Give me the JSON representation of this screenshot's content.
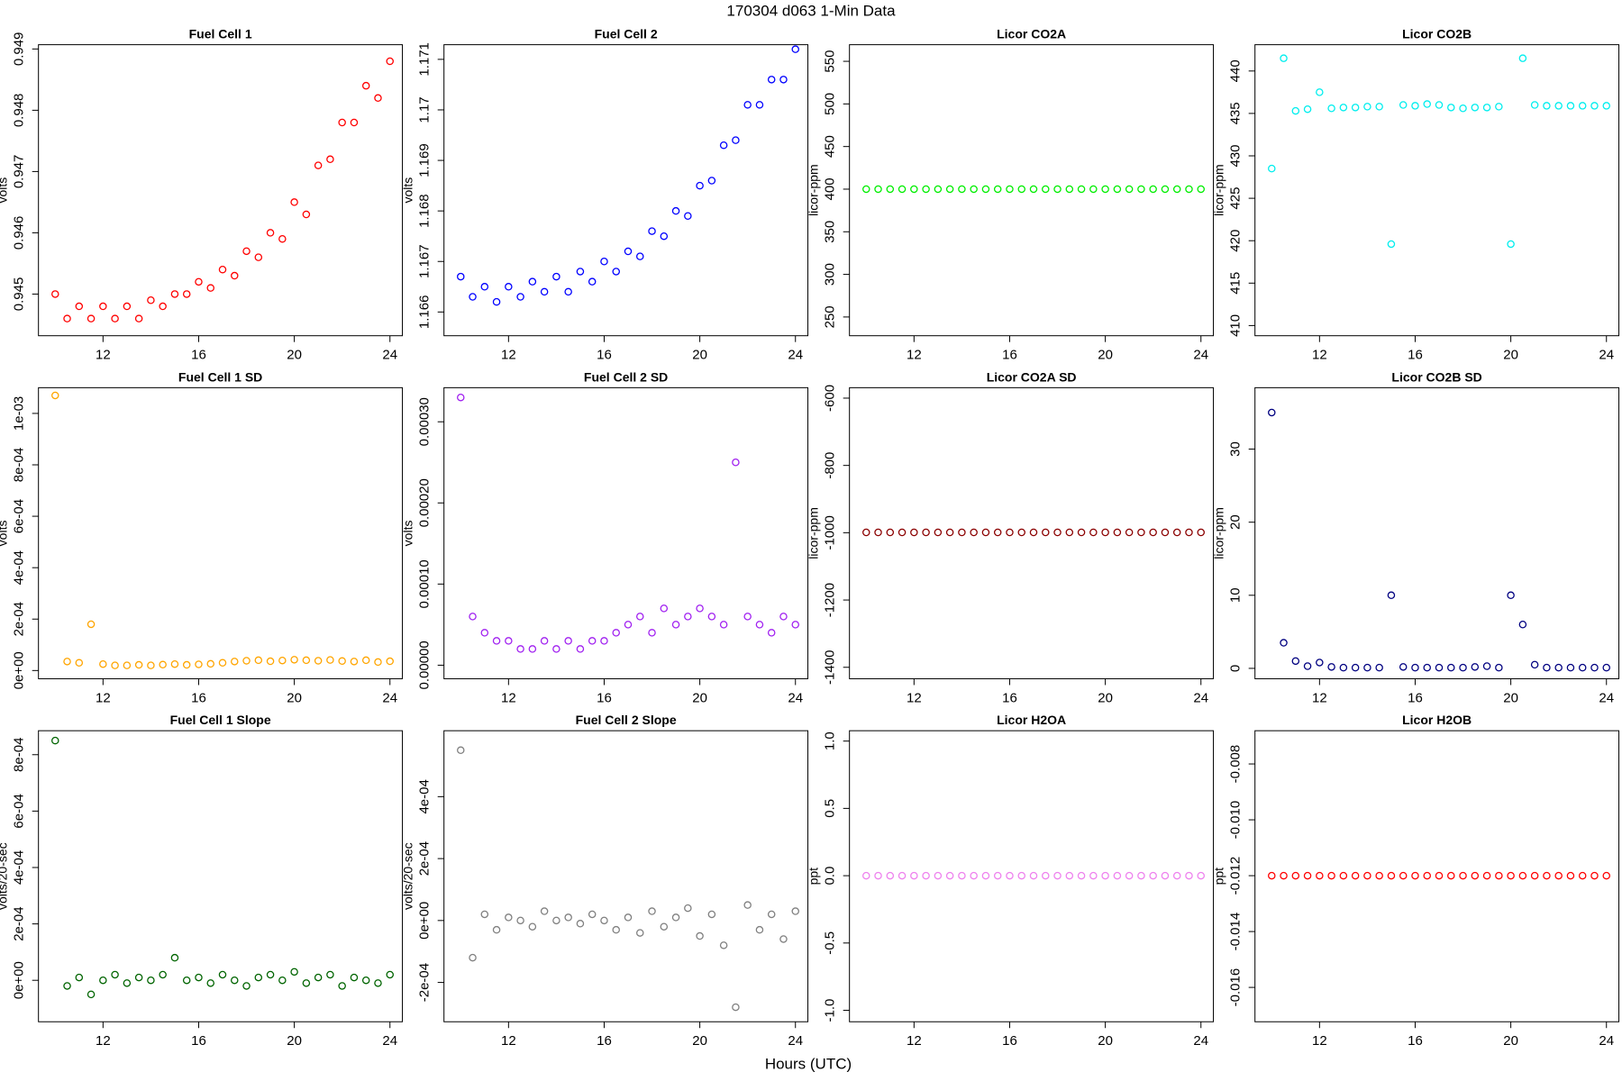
{
  "title": "170304    d063    1-Min Data",
  "x_label": "Hours (UTC)",
  "chart_data": [
    {
      "type": "scatter",
      "title": "Fuel Cell 1",
      "ylabel": "volts",
      "color": "#ff0000",
      "x": [
        10,
        10.5,
        11,
        11.5,
        12,
        12.5,
        13,
        13.5,
        14,
        14.5,
        15,
        15.5,
        16,
        16.5,
        17,
        17.5,
        18,
        18.5,
        19,
        19.5,
        20,
        20.5,
        21,
        21.5,
        22,
        22.5,
        23,
        23.5,
        24
      ],
      "values": [
        0.945,
        0.9446,
        0.9448,
        0.9446,
        0.9448,
        0.9446,
        0.9448,
        0.9446,
        0.9449,
        0.9448,
        0.945,
        0.945,
        0.9452,
        0.9451,
        0.9454,
        0.9453,
        0.9457,
        0.9456,
        0.946,
        0.9459,
        0.9465,
        0.9463,
        0.9471,
        0.9472,
        0.9478,
        0.9478,
        0.9484,
        0.9482,
        0.9488
      ],
      "xlim": [
        9.3,
        24.52
      ],
      "ylim": [
        0.94432,
        0.94907
      ],
      "xticks": [
        12,
        16,
        20,
        24
      ],
      "yticks": [
        0.945,
        0.946,
        0.947,
        0.948,
        0.949
      ]
    },
    {
      "type": "scatter",
      "title": "Fuel Cell 2",
      "ylabel": "volts",
      "color": "#0000ff",
      "x": [
        10,
        10.5,
        11,
        11.5,
        12,
        12.5,
        13,
        13.5,
        14,
        14.5,
        15,
        15.5,
        16,
        16.5,
        17,
        17.5,
        18,
        18.5,
        19,
        19.5,
        20,
        20.5,
        21,
        21.5,
        22,
        22.5,
        23,
        23.5,
        24
      ],
      "values": [
        1.1667,
        1.1663,
        1.1665,
        1.1662,
        1.1665,
        1.1663,
        1.1666,
        1.1664,
        1.1667,
        1.1664,
        1.1668,
        1.1666,
        1.167,
        1.1668,
        1.1672,
        1.1671,
        1.1676,
        1.1675,
        1.168,
        1.1679,
        1.1685,
        1.1686,
        1.1693,
        1.1694,
        1.1701,
        1.1701,
        1.1706,
        1.1706,
        1.1712
      ],
      "xlim": [
        9.3,
        24.52
      ],
      "ylim": [
        1.16553,
        1.17129
      ],
      "xticks": [
        12,
        16,
        20,
        24
      ],
      "yticks": [
        1.166,
        1.167,
        1.168,
        1.169,
        1.17,
        1.171
      ]
    },
    {
      "type": "scatter",
      "title": "Licor CO2A",
      "ylabel": "licor-ppm",
      "color": "#00ee00",
      "x": [
        10,
        10.5,
        11,
        11.5,
        12,
        12.5,
        13,
        13.5,
        14,
        14.5,
        15,
        15.5,
        16,
        16.5,
        17,
        17.5,
        18,
        18.5,
        19,
        19.5,
        20,
        20.5,
        21,
        21.5,
        22,
        22.5,
        23,
        23.5,
        24
      ],
      "values": [
        400,
        400,
        400,
        400,
        400,
        400,
        400,
        400,
        400,
        400,
        400,
        400,
        400,
        400,
        400,
        400,
        400,
        400,
        400,
        400,
        400,
        400,
        400,
        400,
        400,
        400,
        400,
        400,
        400
      ],
      "xlim": [
        9.3,
        24.52
      ],
      "ylim": [
        228,
        569.5
      ],
      "xticks": [
        12,
        16,
        20,
        24
      ],
      "yticks": [
        250,
        300,
        350,
        400,
        450,
        500,
        550
      ]
    },
    {
      "type": "scatter",
      "title": "Licor CO2B",
      "ylabel": "licor-ppm",
      "color": "#00eeee",
      "x": [
        10,
        10.5,
        11,
        11.5,
        12,
        12.5,
        13,
        13.5,
        14,
        14.5,
        15,
        15.5,
        16,
        16.5,
        17,
        17.5,
        18,
        18.5,
        19,
        19.5,
        20,
        20.5,
        21,
        21.5,
        22,
        22.5,
        23,
        23.5,
        24
      ],
      "values": [
        428.5,
        441.5,
        435.3,
        435.5,
        437.5,
        435.6,
        435.7,
        435.7,
        435.8,
        435.8,
        419.6,
        436.0,
        435.9,
        436.1,
        436.0,
        435.7,
        435.6,
        435.7,
        435.7,
        435.8,
        419.6,
        441.5,
        436.0,
        435.9,
        435.9,
        435.9,
        435.9,
        435.9,
        435.9
      ],
      "xlim": [
        9.3,
        24.52
      ],
      "ylim": [
        408.8,
        443.1
      ],
      "xticks": [
        12,
        16,
        20,
        24
      ],
      "yticks": [
        410,
        415,
        420,
        425,
        430,
        435,
        440
      ]
    },
    {
      "type": "scatter",
      "title": "Fuel Cell 1 SD",
      "ylabel": "volts",
      "color": "#ffa500",
      "x": [
        10,
        10.5,
        11,
        11.5,
        12,
        12.5,
        13,
        13.5,
        14,
        14.5,
        15,
        15.5,
        16,
        16.5,
        17,
        17.5,
        18,
        18.5,
        19,
        19.5,
        20,
        20.5,
        21,
        21.5,
        22,
        22.5,
        23,
        23.5,
        24
      ],
      "values": [
        0.00107,
        3.5e-05,
        3e-05,
        0.00018,
        2.5e-05,
        2e-05,
        2e-05,
        2.2e-05,
        2e-05,
        2.3e-05,
        2.5e-05,
        2.2e-05,
        2.4e-05,
        2.6e-05,
        3e-05,
        3.5e-05,
        3.8e-05,
        4e-05,
        3.6e-05,
        3.9e-05,
        4.2e-05,
        4e-05,
        3.8e-05,
        4.1e-05,
        3.7e-05,
        3.5e-05,
        4e-05,
        3.3e-05,
        3.6e-05
      ],
      "xlim": [
        9.3,
        24.52
      ],
      "ylim": [
        -3.2e-05,
        0.0011
      ],
      "xticks": [
        12,
        16,
        20,
        24
      ],
      "yticks": [
        {
          "value": 0,
          "label": "0e+00"
        },
        {
          "value": 0.0002,
          "label": "2e-04"
        },
        {
          "value": 0.0004,
          "label": "4e-04"
        },
        {
          "value": 0.0006,
          "label": "6e-04"
        },
        {
          "value": 0.0008,
          "label": "8e-04"
        },
        {
          "value": 0.001,
          "label": "1e-03"
        }
      ]
    },
    {
      "type": "scatter",
      "title": "Fuel Cell 2 SD",
      "ylabel": "volts",
      "color": "#a020f0",
      "x": [
        10,
        10.5,
        11,
        11.5,
        12,
        12.5,
        13,
        13.5,
        14,
        14.5,
        15,
        15.5,
        16,
        16.5,
        17,
        17.5,
        18,
        18.5,
        19,
        19.5,
        20,
        20.5,
        21,
        21.5,
        22,
        22.5,
        23,
        23.5,
        24
      ],
      "values": [
        0.00033,
        6e-05,
        4e-05,
        3e-05,
        3e-05,
        2e-05,
        2e-05,
        3e-05,
        2e-05,
        3e-05,
        2e-05,
        3e-05,
        3e-05,
        4e-05,
        5e-05,
        6e-05,
        4e-05,
        7e-05,
        5e-05,
        6e-05,
        7e-05,
        6e-05,
        5e-05,
        0.00025,
        6e-05,
        5e-05,
        4e-05,
        6e-05,
        5e-05
      ],
      "xlim": [
        9.3,
        24.52
      ],
      "ylim": [
        -1.67e-05,
        0.000342
      ],
      "xticks": [
        12,
        16,
        20,
        24
      ],
      "yticks": [
        {
          "value": 0,
          "label": "0.00000"
        },
        {
          "value": 0.0001,
          "label": "0.00010"
        },
        {
          "value": 0.0002,
          "label": "0.00020"
        },
        {
          "value": 0.0003,
          "label": "0.00030"
        }
      ]
    },
    {
      "type": "scatter",
      "title": "Licor CO2A SD",
      "ylabel": "licor-ppm",
      "color": "#8b0000",
      "x": [
        10,
        10.5,
        11,
        11.5,
        12,
        12.5,
        13,
        13.5,
        14,
        14.5,
        15,
        15.5,
        16,
        16.5,
        17,
        17.5,
        18,
        18.5,
        19,
        19.5,
        20,
        20.5,
        21,
        21.5,
        22,
        22.5,
        23,
        23.5,
        24
      ],
      "values": [
        -999,
        -999,
        -999,
        -999,
        -999,
        -999,
        -999,
        -999,
        -999,
        -999,
        -999,
        -999,
        -999,
        -999,
        -999,
        -999,
        -999,
        -999,
        -999,
        -999,
        -999,
        -999,
        -999,
        -999,
        -999,
        -999,
        -999,
        -999,
        -999
      ],
      "xlim": [
        9.3,
        24.52
      ],
      "ylim": [
        -1434,
        -569
      ],
      "xticks": [
        12,
        16,
        20,
        24
      ],
      "yticks": [
        -1400,
        -1200,
        -1000,
        -800,
        -600
      ]
    },
    {
      "type": "scatter",
      "title": "Licor CO2B SD",
      "ylabel": "licor-ppm",
      "color": "#000080",
      "x": [
        10,
        10.5,
        11,
        11.5,
        12,
        12.5,
        13,
        13.5,
        14,
        14.5,
        15,
        15.5,
        16,
        16.5,
        17,
        17.5,
        18,
        18.5,
        19,
        19.5,
        20,
        20.5,
        21,
        21.5,
        22,
        22.5,
        23,
        23.5,
        24
      ],
      "values": [
        35,
        3.5,
        1.0,
        0.3,
        0.8,
        0.2,
        0.1,
        0.1,
        0.1,
        0.1,
        10,
        0.2,
        0.1,
        0.1,
        0.1,
        0.1,
        0.1,
        0.2,
        0.3,
        0.1,
        10,
        6,
        0.5,
        0.1,
        0.1,
        0.1,
        0.1,
        0.1,
        0.1
      ],
      "xlim": [
        9.3,
        24.52
      ],
      "ylim": [
        -1.42,
        38.4
      ],
      "xticks": [
        12,
        16,
        20,
        24
      ],
      "yticks": [
        0,
        10,
        20,
        30
      ]
    },
    {
      "type": "scatter",
      "title": "Fuel Cell 1 Slope",
      "ylabel": "volts/20-sec",
      "color": "#006400",
      "x": [
        10,
        10.5,
        11,
        11.5,
        12,
        12.5,
        13,
        13.5,
        14,
        14.5,
        15,
        15.5,
        16,
        16.5,
        17,
        17.5,
        18,
        18.5,
        19,
        19.5,
        20,
        20.5,
        21,
        21.5,
        22,
        22.5,
        23,
        23.5,
        24
      ],
      "values": [
        0.00085,
        -2e-05,
        1e-05,
        -5e-05,
        0,
        2e-05,
        -1e-05,
        1e-05,
        0,
        2e-05,
        8e-05,
        0,
        1e-05,
        -1e-05,
        2e-05,
        0,
        -2e-05,
        1e-05,
        2e-05,
        0,
        3e-05,
        -1e-05,
        1e-05,
        2e-05,
        -2e-05,
        1e-05,
        0,
        -1e-05,
        2e-05
      ],
      "xlim": [
        9.3,
        24.52
      ],
      "ylim": [
        -0.000147,
        0.000885
      ],
      "xticks": [
        12,
        16,
        20,
        24
      ],
      "yticks": [
        {
          "value": 0,
          "label": "0e+00"
        },
        {
          "value": 0.0002,
          "label": "2e-04"
        },
        {
          "value": 0.0004,
          "label": "4e-04"
        },
        {
          "value": 0.0006,
          "label": "6e-04"
        },
        {
          "value": 0.0008,
          "label": "8e-04"
        }
      ]
    },
    {
      "type": "scatter",
      "title": "Fuel Cell 2 Slope",
      "ylabel": "volts/20-sec",
      "color": "#808080",
      "x": [
        10,
        10.5,
        11,
        11.5,
        12,
        12.5,
        13,
        13.5,
        14,
        14.5,
        15,
        15.5,
        16,
        16.5,
        17,
        17.5,
        18,
        18.5,
        19,
        19.5,
        20,
        20.5,
        21,
        21.5,
        22,
        22.5,
        23,
        23.5,
        24
      ],
      "values": [
        0.00055,
        -0.00012,
        2e-05,
        -3e-05,
        1e-05,
        0,
        -2e-05,
        3e-05,
        0,
        1e-05,
        -1e-05,
        2e-05,
        0,
        -3e-05,
        1e-05,
        -4e-05,
        3e-05,
        -2e-05,
        1e-05,
        4e-05,
        -5e-05,
        2e-05,
        -8e-05,
        -0.00028,
        5e-05,
        -3e-05,
        2e-05,
        -6e-05,
        3e-05
      ],
      "xlim": [
        9.3,
        24.52
      ],
      "ylim": [
        -0.000327,
        0.000613
      ],
      "xticks": [
        12,
        16,
        20,
        24
      ],
      "yticks": [
        {
          "value": -0.0002,
          "label": "-2e-04"
        },
        {
          "value": 0,
          "label": "0e+00"
        },
        {
          "value": 0.0002,
          "label": "2e-04"
        },
        {
          "value": 0.0004,
          "label": "4e-04"
        }
      ]
    },
    {
      "type": "scatter",
      "title": "Licor H2OA",
      "ylabel": "ppt",
      "color": "#ee82ee",
      "x": [
        10,
        10.5,
        11,
        11.5,
        12,
        12.5,
        13,
        13.5,
        14,
        14.5,
        15,
        15.5,
        16,
        16.5,
        17,
        17.5,
        18,
        18.5,
        19,
        19.5,
        20,
        20.5,
        21,
        21.5,
        22,
        22.5,
        23,
        23.5,
        24
      ],
      "values": [
        0,
        0,
        0,
        0,
        0,
        0,
        0,
        0,
        0,
        0,
        0,
        0,
        0,
        0,
        0,
        0,
        0,
        0,
        0,
        0,
        0,
        0,
        0,
        0,
        0,
        0,
        0,
        0,
        0
      ],
      "xlim": [
        9.3,
        24.52
      ],
      "ylim": [
        -1.085,
        1.077
      ],
      "xticks": [
        12,
        16,
        20,
        24
      ],
      "yticks": [
        {
          "value": -1,
          "label": "-1.0"
        },
        -0.5,
        {
          "value": 0,
          "label": "0.0"
        },
        0.5,
        {
          "value": 1,
          "label": "1.0"
        }
      ]
    },
    {
      "type": "scatter",
      "title": "Licor H2OB",
      "ylabel": "ppt",
      "color": "#ff0000",
      "x": [
        10,
        10.5,
        11,
        11.5,
        12,
        12.5,
        13,
        13.5,
        14,
        14.5,
        15,
        15.5,
        16,
        16.5,
        17,
        17.5,
        18,
        18.5,
        19,
        19.5,
        20,
        20.5,
        21,
        21.5,
        22,
        22.5,
        23,
        23.5,
        24
      ],
      "values": [
        -0.012,
        -0.012,
        -0.012,
        -0.012,
        -0.012,
        -0.012,
        -0.012,
        -0.012,
        -0.012,
        -0.012,
        -0.012,
        -0.012,
        -0.012,
        -0.012,
        -0.012,
        -0.012,
        -0.012,
        -0.012,
        -0.012,
        -0.012,
        -0.012,
        -0.012,
        -0.012,
        -0.012,
        -0.012,
        -0.012,
        -0.012,
        -0.012,
        -0.012
      ],
      "xlim": [
        9.3,
        24.52
      ],
      "ylim": [
        -0.01723,
        -0.00681
      ],
      "xticks": [
        12,
        16,
        20,
        24
      ],
      "yticks": [
        -0.016,
        -0.014,
        -0.012,
        {
          "value": -0.01,
          "label": "-0.010"
        },
        -0.008
      ]
    }
  ]
}
